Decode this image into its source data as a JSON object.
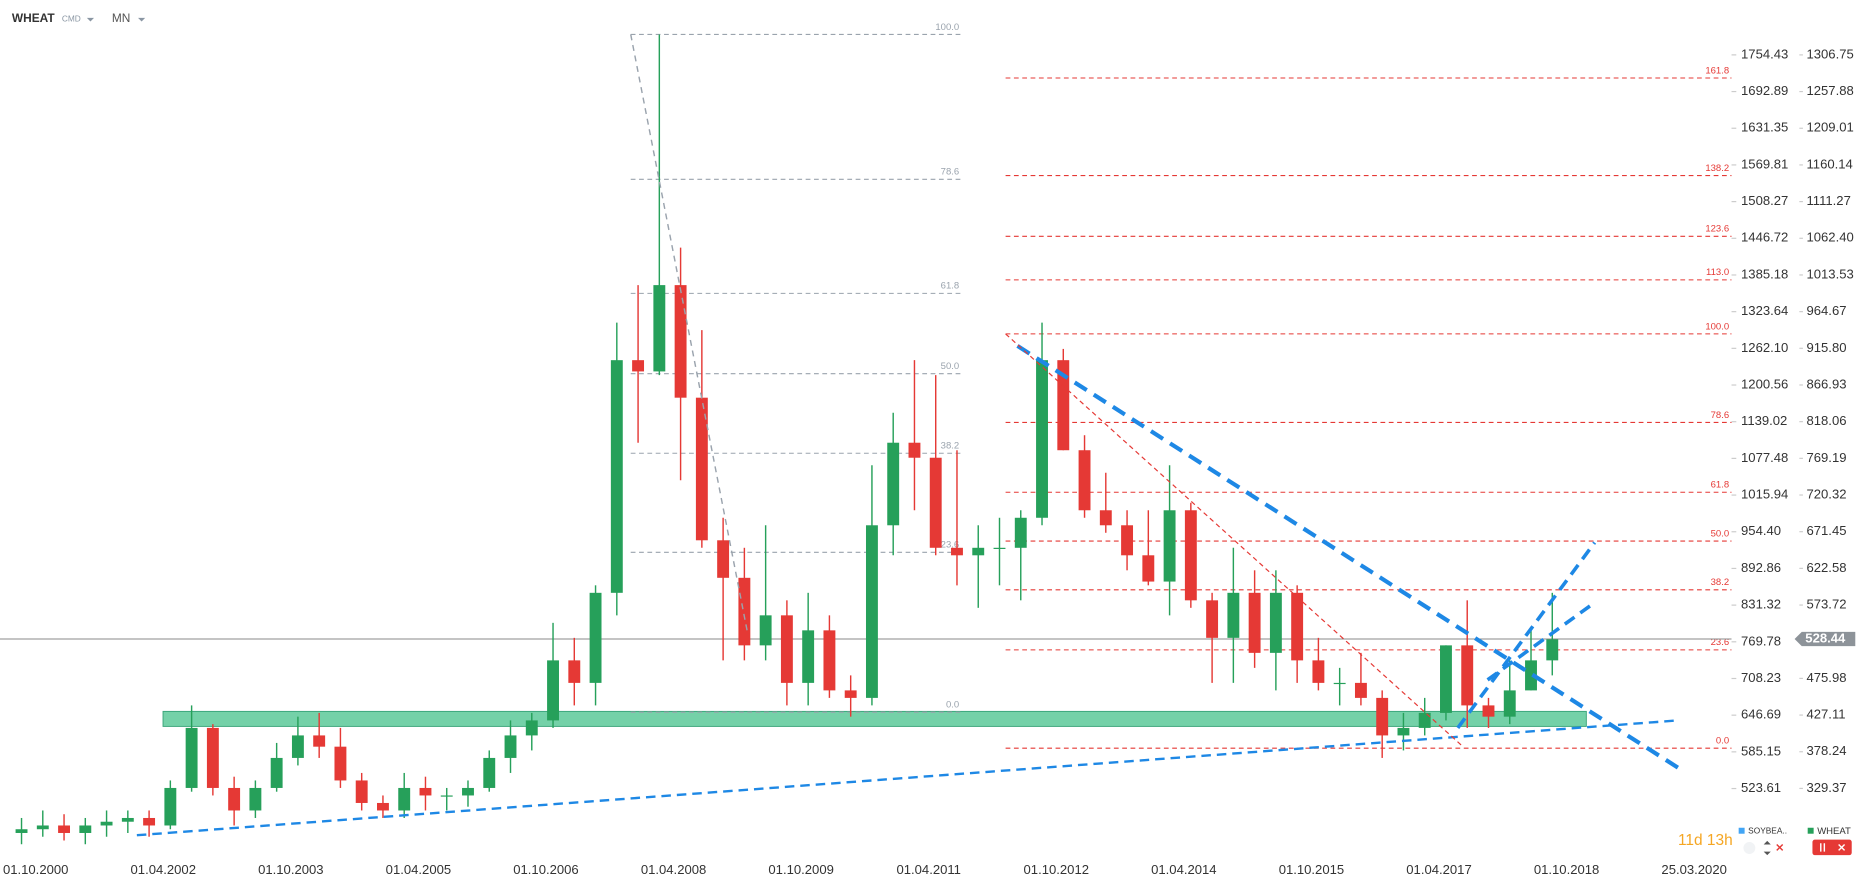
{
  "chart_data": {
    "type": "candlestick",
    "title": "WHEAT",
    "instrument_type": "CMD",
    "interval": "MN",
    "up_color": "#26a05a",
    "down_color": "#e53935",
    "open": [
      270,
      275,
      280,
      270,
      280,
      285,
      290,
      280,
      330,
      410,
      330,
      300,
      330,
      370,
      400,
      385,
      340,
      310,
      300,
      330,
      320,
      320,
      330,
      370,
      400,
      420,
      500,
      470,
      590,
      900,
      885,
      1000,
      850,
      660,
      610,
      520,
      560,
      470,
      540,
      460,
      450,
      680,
      790,
      770,
      650,
      640,
      650,
      650,
      690,
      900,
      780,
      700,
      680,
      640,
      605,
      700,
      580,
      530,
      590,
      510,
      590,
      500,
      470,
      470,
      450,
      400,
      410,
      430,
      520,
      440,
      425,
      460,
      500
    ],
    "high": [
      290,
      300,
      295,
      290,
      300,
      300,
      300,
      340,
      440,
      415,
      345,
      340,
      390,
      425,
      430,
      410,
      350,
      320,
      350,
      345,
      330,
      340,
      380,
      420,
      430,
      550,
      530,
      600,
      950,
      1000,
      1334,
      1050,
      940,
      690,
      650,
      680,
      580,
      590,
      560,
      480,
      760,
      830,
      900,
      880,
      780,
      680,
      690,
      700,
      950,
      915,
      800,
      750,
      700,
      700,
      760,
      710,
      590,
      650,
      620,
      620,
      600,
      530,
      490,
      510,
      460,
      430,
      450,
      520,
      580,
      450,
      500,
      540,
      590
    ],
    "low": [
      255,
      265,
      260,
      255,
      265,
      270,
      265,
      275,
      325,
      320,
      280,
      290,
      325,
      360,
      370,
      330,
      300,
      290,
      290,
      300,
      300,
      305,
      325,
      350,
      380,
      410,
      440,
      440,
      560,
      790,
      880,
      740,
      650,
      500,
      500,
      500,
      440,
      440,
      450,
      425,
      440,
      640,
      700,
      640,
      600,
      570,
      600,
      580,
      680,
      780,
      690,
      670,
      620,
      600,
      560,
      570,
      470,
      470,
      490,
      460,
      470,
      460,
      440,
      440,
      370,
      380,
      400,
      420,
      410,
      410,
      415,
      460,
      480
    ],
    "close": [
      275,
      280,
      270,
      280,
      285,
      290,
      280,
      330,
      410,
      330,
      300,
      330,
      370,
      400,
      385,
      340,
      310,
      300,
      330,
      320,
      320,
      330,
      370,
      400,
      420,
      500,
      470,
      590,
      900,
      885,
      1000,
      850,
      660,
      610,
      520,
      560,
      470,
      540,
      460,
      450,
      680,
      790,
      770,
      650,
      640,
      650,
      650,
      690,
      900,
      780,
      700,
      680,
      640,
      605,
      700,
      580,
      530,
      590,
      510,
      590,
      500,
      470,
      470,
      450,
      400,
      410,
      430,
      520,
      440,
      425,
      460,
      500,
      528
    ],
    "ylim": [
      243.6,
      1379.9
    ],
    "yticks": [
      1306.75,
      1257.88,
      1209.01,
      1160.14,
      1111.27,
      {
        "value": 1062.4,
        "label": "1062.40"
      },
      1013.53,
      964.67,
      {
        "value": 915.8,
        "label": "915.80"
      },
      866.93,
      818.06,
      769.19,
      720.32,
      671.45,
      622.58,
      573.72,
      475.98,
      427.11,
      378.24,
      329.37
    ],
    "y2lim": [
      415.8,
      1846.5
    ],
    "y2ticks": [
      1754.43,
      1692.89,
      1631.35,
      1569.81,
      1508.27,
      1446.72,
      1385.18,
      1323.64,
      {
        "value": 1262.1,
        "label": "1262.10"
      },
      1200.56,
      1139.02,
      1077.48,
      1015.94,
      {
        "value": 954.4,
        "label": "954.40"
      },
      892.86,
      831.32,
      769.78,
      708.23,
      646.69,
      585.15,
      523.61
    ],
    "xticks": [
      "01.10.2000",
      "01.04.2002",
      "01.10.2003",
      "01.04.2005",
      "01.10.2006",
      "01.04.2008",
      "01.10.2009",
      "01.04.2011",
      "01.10.2012",
      "01.04.2014",
      "01.10.2015",
      "01.04.2017",
      "01.10.2018",
      "25.03.2020"
    ],
    "last_price": 528.44,
    "zone": [
      412,
      432
    ],
    "fib_sets": [
      {
        "color": "#9aa3ad",
        "levels": [
          {
            "ratio": "100.0",
            "value": 1334
          },
          {
            "ratio": "78.6",
            "value": 1141
          },
          {
            "ratio": "61.8",
            "value": 989
          },
          {
            "ratio": "50.0",
            "value": 882
          },
          {
            "ratio": "38.2",
            "value": 776
          },
          {
            "ratio": "23.6",
            "value": 644
          },
          {
            "ratio": "0.0",
            "value": 431
          }
        ]
      },
      {
        "color": "#e53935",
        "levels": [
          {
            "ratio": "161.8",
            "value": 1276
          },
          {
            "ratio": "138.2",
            "value": 1146
          },
          {
            "ratio": "123.6",
            "value": 1065
          },
          {
            "ratio": "113.0",
            "value": 1007
          },
          {
            "ratio": "100.0",
            "value": 935
          },
          {
            "ratio": "78.6",
            "value": 817
          },
          {
            "ratio": "61.8",
            "value": 724
          },
          {
            "ratio": "50.0",
            "value": 659
          },
          {
            "ratio": "38.2",
            "value": 594
          },
          {
            "ratio": "23.6",
            "value": 514
          },
          {
            "ratio": "0.0",
            "value": 383
          }
        ]
      }
    ],
    "trendlines": [
      {
        "color": "#1e88e5",
        "values": [
          267,
          420
        ]
      },
      {
        "color": "#1e88e5",
        "values": [
          919,
          355
        ]
      },
      {
        "color": "#1e88e5",
        "values": [
          410,
          657
        ]
      },
      {
        "color": "#1e88e5",
        "values": [
          474,
          577
        ]
      },
      {
        "color": "#e53935",
        "values": [
          935,
          387
        ]
      },
      {
        "color": "#9aa3ad",
        "values": [
          1334,
          538
        ]
      }
    ],
    "countdown": "11d 13h",
    "legend": [
      {
        "name": "SOYBEA..",
        "color": "#42a5f5"
      },
      {
        "name": "WHEAT",
        "color": "#26a05a"
      }
    ]
  }
}
